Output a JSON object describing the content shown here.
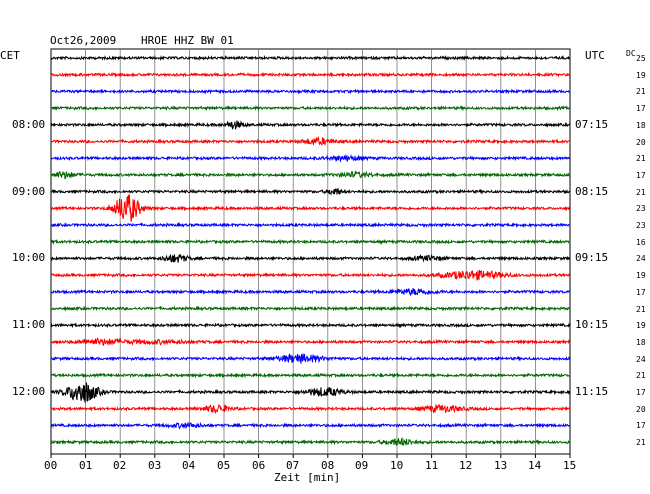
{
  "header": {
    "date": "Oct26,2009",
    "station": "HROE HHZ BW 01",
    "left_zone": "CET",
    "right_zone": "UTC",
    "dc_label": "DC"
  },
  "footer": {
    "xlabel": "Zeit [min]"
  },
  "chart_data": {
    "type": "line",
    "title": "Oct26,2009   HROE HHZ BW 01",
    "xlabel": "Zeit [min]",
    "ylabel": "",
    "xlim": [
      0,
      15
    ],
    "x_ticks": [
      "00",
      "01",
      "02",
      "03",
      "04",
      "05",
      "06",
      "07",
      "08",
      "09",
      "10",
      "11",
      "12",
      "13",
      "14",
      "15"
    ],
    "grid": true,
    "trace_colors": [
      "#000000",
      "#ff0000",
      "#0000ff",
      "#006600"
    ],
    "left_time_labels": [
      {
        "row": 4,
        "label": "08:00"
      },
      {
        "row": 8,
        "label": "09:00"
      },
      {
        "row": 12,
        "label": "10:00"
      },
      {
        "row": 16,
        "label": "11:00"
      },
      {
        "row": 20,
        "label": "12:00"
      }
    ],
    "right_time_labels": [
      {
        "row": 4,
        "label": "07:15"
      },
      {
        "row": 8,
        "label": "08:15"
      },
      {
        "row": 12,
        "label": "09:15"
      },
      {
        "row": 16,
        "label": "10:15"
      },
      {
        "row": 20,
        "label": "11:15"
      }
    ],
    "dc_offsets": [
      "25",
      "19",
      "21",
      "17",
      "18",
      "20",
      "21",
      "17",
      "21",
      "23",
      "23",
      "16",
      "24",
      "19",
      "17",
      "21",
      "19",
      "18",
      "24",
      "21",
      "17",
      "20",
      "17",
      "21"
    ],
    "events": [
      {
        "row": 4,
        "minute": 5.3,
        "amplitude": 3.5,
        "width": 0.35
      },
      {
        "row": 5,
        "minute": 7.7,
        "amplitude": 3,
        "width": 0.6
      },
      {
        "row": 6,
        "minute": 8.5,
        "amplitude": 2,
        "width": 0.8
      },
      {
        "row": 7,
        "minute": 0.4,
        "amplitude": 3,
        "width": 0.4
      },
      {
        "row": 7,
        "minute": 8.8,
        "amplitude": 2,
        "width": 0.7
      },
      {
        "row": 8,
        "minute": 8.2,
        "amplitude": 3,
        "width": 0.3
      },
      {
        "row": 9,
        "minute": 2.2,
        "amplitude": 14,
        "width": 0.5
      },
      {
        "row": 12,
        "minute": 3.6,
        "amplitude": 3.5,
        "width": 0.5
      },
      {
        "row": 12,
        "minute": 10.9,
        "amplitude": 2,
        "width": 0.6
      },
      {
        "row": 13,
        "minute": 12.2,
        "amplitude": 4,
        "width": 1.2
      },
      {
        "row": 14,
        "minute": 10.5,
        "amplitude": 2.5,
        "width": 0.8
      },
      {
        "row": 17,
        "minute": 1.4,
        "amplitude": 2.5,
        "width": 0.8
      },
      {
        "row": 17,
        "minute": 3.0,
        "amplitude": 1.5,
        "width": 1.5
      },
      {
        "row": 18,
        "minute": 7.2,
        "amplitude": 4,
        "width": 0.9
      },
      {
        "row": 20,
        "minute": 0.9,
        "amplitude": 11,
        "width": 0.6
      },
      {
        "row": 20,
        "minute": 7.9,
        "amplitude": 4,
        "width": 0.7
      },
      {
        "row": 21,
        "minute": 4.8,
        "amplitude": 3.5,
        "width": 0.5
      },
      {
        "row": 21,
        "minute": 11.3,
        "amplitude": 3,
        "width": 0.8
      },
      {
        "row": 22,
        "minute": 3.9,
        "amplitude": 2,
        "width": 0.6
      },
      {
        "row": 23,
        "minute": 10.1,
        "amplitude": 3,
        "width": 0.6
      }
    ]
  }
}
